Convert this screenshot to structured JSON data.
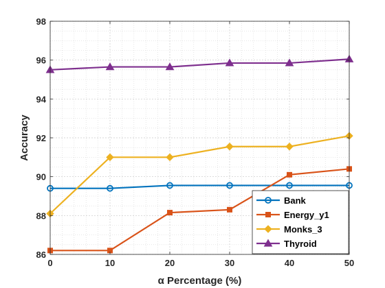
{
  "chart_data": {
    "type": "line",
    "x": [
      0,
      10,
      20,
      30,
      40,
      50
    ],
    "xlabel": "α Percentage (%)",
    "ylabel": "Accuracy",
    "xlim": [
      0,
      50
    ],
    "ylim": [
      86,
      98
    ],
    "xticks": [
      0,
      10,
      20,
      30,
      40,
      50
    ],
    "yticks": [
      86,
      88,
      90,
      92,
      94,
      96,
      98
    ],
    "grid": true,
    "minor_grid": true,
    "legend_position": "lower-right",
    "series": [
      {
        "name": "Bank",
        "color": "#0072BD",
        "marker": "circle",
        "values": [
          89.4,
          89.4,
          89.55,
          89.55,
          89.55,
          89.55
        ]
      },
      {
        "name": "Energy_y1",
        "color": "#D95319",
        "marker": "square",
        "values": [
          86.2,
          86.2,
          88.15,
          88.3,
          90.1,
          90.4
        ]
      },
      {
        "name": "Monks_3",
        "color": "#EDB120",
        "marker": "diamond",
        "values": [
          88.1,
          91.0,
          91.0,
          91.55,
          91.55,
          92.1
        ]
      },
      {
        "name": "Thyroid",
        "color": "#7E2F8E",
        "marker": "triangle",
        "values": [
          95.5,
          95.65,
          95.65,
          95.85,
          95.85,
          96.05
        ]
      }
    ]
  }
}
